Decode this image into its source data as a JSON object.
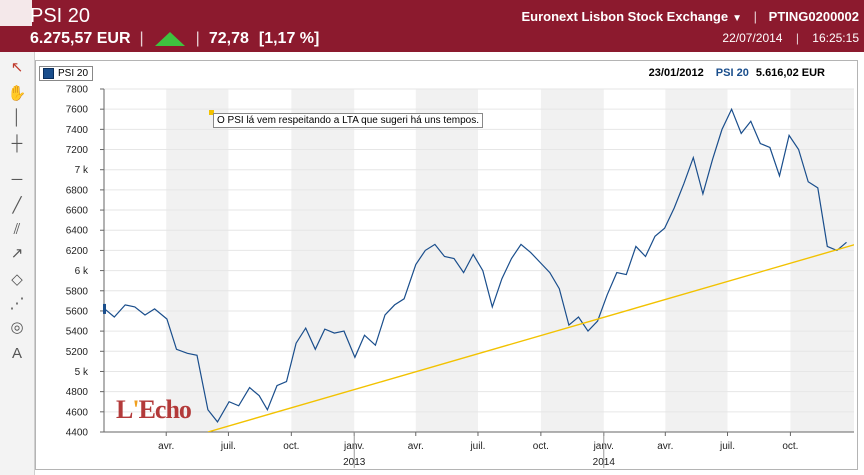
{
  "header": {
    "title": "PSI 20",
    "price": "6.275,57 EUR",
    "change": "72,78",
    "change_pct": "[1,17 %]",
    "exchange": "Euronext Lisbon Stock Exchange",
    "isin": "PTING0200002",
    "date": "22/07/2014",
    "time": "16:25:15",
    "trend": "up",
    "brand_color": "#8c1a2e"
  },
  "toolbar": {
    "tools": [
      {
        "name": "pointer-icon",
        "glyph": "↖"
      },
      {
        "name": "hand-icon",
        "glyph": "✋"
      },
      {
        "name": "vertical-line-icon",
        "glyph": "│"
      },
      {
        "name": "crosshair-icon",
        "glyph": "┼"
      },
      {
        "name": "horizontal-line-icon",
        "glyph": "─"
      },
      {
        "name": "trend-line-icon",
        "glyph": "╱"
      },
      {
        "name": "parallel-lines-icon",
        "glyph": "⫽"
      },
      {
        "name": "ray-icon",
        "glyph": "↗"
      },
      {
        "name": "rectangle-icon",
        "glyph": "◇"
      },
      {
        "name": "fan-icon",
        "glyph": "⋰"
      },
      {
        "name": "arcs-icon",
        "glyph": "◎"
      },
      {
        "name": "text-icon",
        "glyph": "A"
      }
    ]
  },
  "chart": {
    "legend_label": "PSI 20",
    "readout_date": "23/01/2012",
    "readout_series": "PSI 20",
    "readout_value": "5.616,02 EUR",
    "annotation": "O PSI lá vem respeitando a LTA que sugeri há uns tempos.",
    "watermark": "L'Echo"
  },
  "chart_data": {
    "type": "line",
    "series": [
      {
        "name": "PSI 20",
        "color": "#1a4e8c",
        "points": [
          [
            "2012-01-02",
            5620
          ],
          [
            "2012-01-16",
            5540
          ],
          [
            "2012-02-01",
            5660
          ],
          [
            "2012-02-15",
            5640
          ],
          [
            "2012-03-01",
            5560
          ],
          [
            "2012-03-15",
            5620
          ],
          [
            "2012-04-02",
            5520
          ],
          [
            "2012-04-16",
            5220
          ],
          [
            "2012-05-02",
            5180
          ],
          [
            "2012-05-16",
            5160
          ],
          [
            "2012-06-01",
            4620
          ],
          [
            "2012-06-15",
            4500
          ],
          [
            "2012-07-02",
            4700
          ],
          [
            "2012-07-16",
            4660
          ],
          [
            "2012-08-01",
            4840
          ],
          [
            "2012-08-15",
            4760
          ],
          [
            "2012-08-27",
            4620
          ],
          [
            "2012-09-10",
            4860
          ],
          [
            "2012-09-24",
            4900
          ],
          [
            "2012-10-08",
            5280
          ],
          [
            "2012-10-22",
            5430
          ],
          [
            "2012-11-05",
            5220
          ],
          [
            "2012-11-19",
            5420
          ],
          [
            "2012-12-03",
            5380
          ],
          [
            "2012-12-17",
            5400
          ],
          [
            "2013-01-02",
            5140
          ],
          [
            "2013-01-16",
            5360
          ],
          [
            "2013-02-01",
            5260
          ],
          [
            "2013-02-15",
            5560
          ],
          [
            "2013-03-01",
            5660
          ],
          [
            "2013-03-15",
            5720
          ],
          [
            "2013-04-01",
            6060
          ],
          [
            "2013-04-15",
            6200
          ],
          [
            "2013-04-29",
            6260
          ],
          [
            "2013-05-13",
            6140
          ],
          [
            "2013-05-27",
            6120
          ],
          [
            "2013-06-10",
            5980
          ],
          [
            "2013-06-24",
            6160
          ],
          [
            "2013-07-08",
            6000
          ],
          [
            "2013-07-22",
            5640
          ],
          [
            "2013-08-05",
            5920
          ],
          [
            "2013-08-19",
            6120
          ],
          [
            "2013-09-02",
            6260
          ],
          [
            "2013-09-16",
            6180
          ],
          [
            "2013-09-30",
            6080
          ],
          [
            "2013-10-14",
            5980
          ],
          [
            "2013-10-28",
            5820
          ],
          [
            "2013-11-11",
            5460
          ],
          [
            "2013-11-25",
            5540
          ],
          [
            "2013-12-09",
            5400
          ],
          [
            "2013-12-23",
            5500
          ],
          [
            "2014-01-06",
            5760
          ],
          [
            "2014-01-20",
            5980
          ],
          [
            "2014-02-03",
            5960
          ],
          [
            "2014-02-17",
            6240
          ],
          [
            "2014-03-03",
            6140
          ],
          [
            "2014-03-17",
            6340
          ],
          [
            "2014-03-31",
            6420
          ],
          [
            "2014-04-14",
            6620
          ],
          [
            "2014-04-28",
            6860
          ],
          [
            "2014-05-12",
            7120
          ],
          [
            "2014-05-26",
            6760
          ],
          [
            "2014-06-09",
            7100
          ],
          [
            "2014-06-23",
            7400
          ],
          [
            "2014-07-07",
            7600
          ],
          [
            "2014-07-21",
            7360
          ],
          [
            "2014-08-04",
            7480
          ],
          [
            "2014-08-18",
            7260
          ],
          [
            "2014-09-01",
            7220
          ],
          [
            "2014-09-15",
            6940
          ],
          [
            "2014-09-29",
            7340
          ],
          [
            "2014-10-13",
            7200
          ],
          [
            "2014-10-27",
            6880
          ],
          [
            "2014-11-10",
            6820
          ],
          [
            "2014-11-24",
            6240
          ],
          [
            "2014-12-08",
            6200
          ],
          [
            "2014-12-22",
            6280
          ]
        ]
      },
      {
        "name": "LTA",
        "color": "#f2c200",
        "points": [
          [
            "2012-06-01",
            4400
          ],
          [
            "2015-03-01",
            6370
          ]
        ]
      }
    ],
    "x_ticks": [
      {
        "date": "2012-04-01",
        "label": "avr."
      },
      {
        "date": "2012-07-01",
        "label": "juil."
      },
      {
        "date": "2012-10-01",
        "label": "oct."
      },
      {
        "date": "2013-01-01",
        "label": "janv.",
        "year": "2013"
      },
      {
        "date": "2013-04-01",
        "label": "avr."
      },
      {
        "date": "2013-07-01",
        "label": "juil."
      },
      {
        "date": "2013-10-01",
        "label": "oct."
      },
      {
        "date": "2014-01-01",
        "label": "janv.",
        "year": "2014"
      },
      {
        "date": "2014-04-01",
        "label": "avr."
      },
      {
        "date": "2014-07-01",
        "label": "juil."
      },
      {
        "date": "2014-10-01",
        "label": "oct."
      }
    ],
    "y_ticks": [
      {
        "value": 4400,
        "label": "4400"
      },
      {
        "value": 4600,
        "label": "4600"
      },
      {
        "value": 4800,
        "label": "4800"
      },
      {
        "value": 5000,
        "label": "5 k"
      },
      {
        "value": 5200,
        "label": "5200"
      },
      {
        "value": 5400,
        "label": "5400"
      },
      {
        "value": 5600,
        "label": "5600"
      },
      {
        "value": 5800,
        "label": "5800"
      },
      {
        "value": 6000,
        "label": "6 k"
      },
      {
        "value": 6200,
        "label": "6200"
      },
      {
        "value": 6400,
        "label": "6400"
      },
      {
        "value": 6600,
        "label": "6600"
      },
      {
        "value": 6800,
        "label": "6800"
      },
      {
        "value": 7000,
        "label": "7 k"
      },
      {
        "value": 7200,
        "label": "7200"
      },
      {
        "value": 7400,
        "label": "7400"
      },
      {
        "value": 7600,
        "label": "7600"
      },
      {
        "value": 7800,
        "label": "7800"
      }
    ],
    "xlim": [
      "2012-01-01",
      "2015-01-02"
    ],
    "ylim": [
      4400,
      7800
    ],
    "grid": true,
    "shaded_bands": true
  }
}
